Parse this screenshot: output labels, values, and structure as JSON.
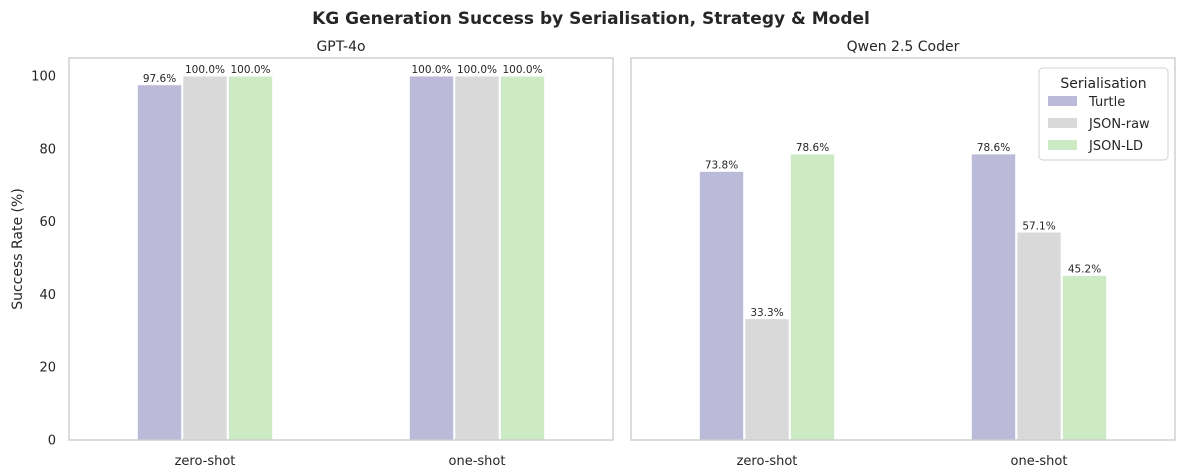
{
  "chart_data": {
    "type": "bar",
    "title": "KG Generation Success by Serialisation, Strategy & Model",
    "ylabel": "Success Rate (%)",
    "xlabel": "",
    "ylim": [
      0,
      105
    ],
    "yticks": [
      0,
      20,
      40,
      60,
      80,
      100
    ],
    "categories": [
      "zero-shot",
      "one-shot"
    ],
    "legend": {
      "title": "Serialisation",
      "placement": "upper right",
      "panel": "Qwen 2.5 Coder"
    },
    "series_colors": {
      "Turtle": "#bcbad9",
      "JSON-raw": "#d9d9d9",
      "JSON-LD": "#ccebc5"
    },
    "grid": false,
    "panels": [
      {
        "title": "GPT-4o",
        "series": [
          {
            "name": "Turtle",
            "values": [
              97.6,
              100.0
            ],
            "labels": [
              "97.6%",
              "100.0%"
            ]
          },
          {
            "name": "JSON-raw",
            "values": [
              100.0,
              100.0
            ],
            "labels": [
              "100.0%",
              "100.0%"
            ]
          },
          {
            "name": "JSON-LD",
            "values": [
              100.0,
              100.0
            ],
            "labels": [
              "100.0%",
              "100.0%"
            ]
          }
        ]
      },
      {
        "title": "Qwen 2.5 Coder",
        "series": [
          {
            "name": "Turtle",
            "values": [
              73.8,
              78.6
            ],
            "labels": [
              "73.8%",
              "78.6%"
            ]
          },
          {
            "name": "JSON-raw",
            "values": [
              33.3,
              57.1
            ],
            "labels": [
              "33.3%",
              "57.1%"
            ]
          },
          {
            "name": "JSON-LD",
            "values": [
              78.6,
              45.2
            ],
            "labels": [
              "78.6%",
              "45.2%"
            ]
          }
        ]
      }
    ]
  }
}
